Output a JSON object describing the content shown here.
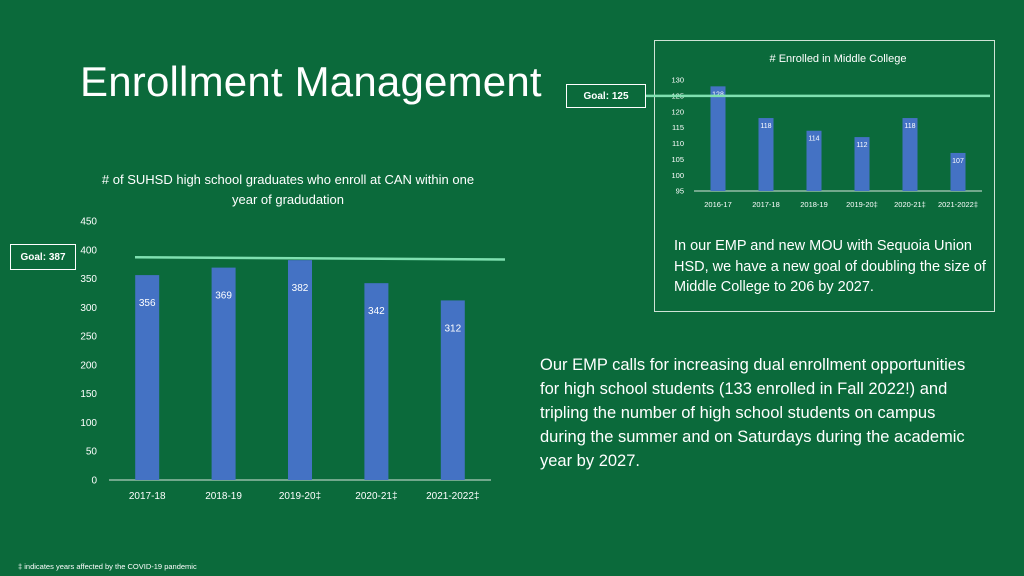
{
  "title": "Enrollment Management",
  "colors": {
    "background": "#0b6a3b",
    "bar": "#4472c4",
    "goal_line": "#7fe0b0",
    "text": "#ffffff"
  },
  "middle_college": {
    "goal_label": "Goal: 125",
    "description": "In our EMP and new MOU with Sequoia Union HSD, we have a new goal of doubling the size of Middle College to 206 by 2027."
  },
  "high_school": {
    "goal_label": "Goal: 387",
    "title": "# of SUHSD high school graduates who enroll at CAN within one year of gradudation"
  },
  "emp_text": "Our EMP calls for increasing dual enrollment opportunities for high school students (133 enrolled in Fall 2022!) and tripling the number of high school students on campus during the summer and on Saturdays during the academic year by 2027.",
  "footnote": "‡ indicates years affected by the COVID-19 pandemic",
  "chart_data": [
    {
      "type": "bar",
      "title": "# Enrolled in Middle College",
      "categories": [
        "2016-17",
        "2017-18",
        "2018-19",
        "2019-20‡",
        "2020-21‡",
        "2021-2022‡"
      ],
      "values": [
        128,
        118,
        114,
        112,
        118,
        107
      ],
      "ylim": [
        95,
        130
      ],
      "yticks": [
        95,
        100,
        105,
        110,
        115,
        120,
        125,
        130
      ],
      "goal": 125,
      "xlabel": "",
      "ylabel": ""
    },
    {
      "type": "bar",
      "title": "# of SUHSD high school graduates who enroll at CAN within one year of gradudation",
      "categories": [
        "2017-18",
        "2018-19",
        "2019-20‡",
        "2020-21‡",
        "2021-2022‡"
      ],
      "values": [
        356,
        369,
        382,
        342,
        312
      ],
      "ylim": [
        0,
        450
      ],
      "yticks": [
        0,
        50,
        100,
        150,
        200,
        250,
        300,
        350,
        400,
        450
      ],
      "goal": 387,
      "goal_end": 383,
      "xlabel": "",
      "ylabel": ""
    }
  ]
}
